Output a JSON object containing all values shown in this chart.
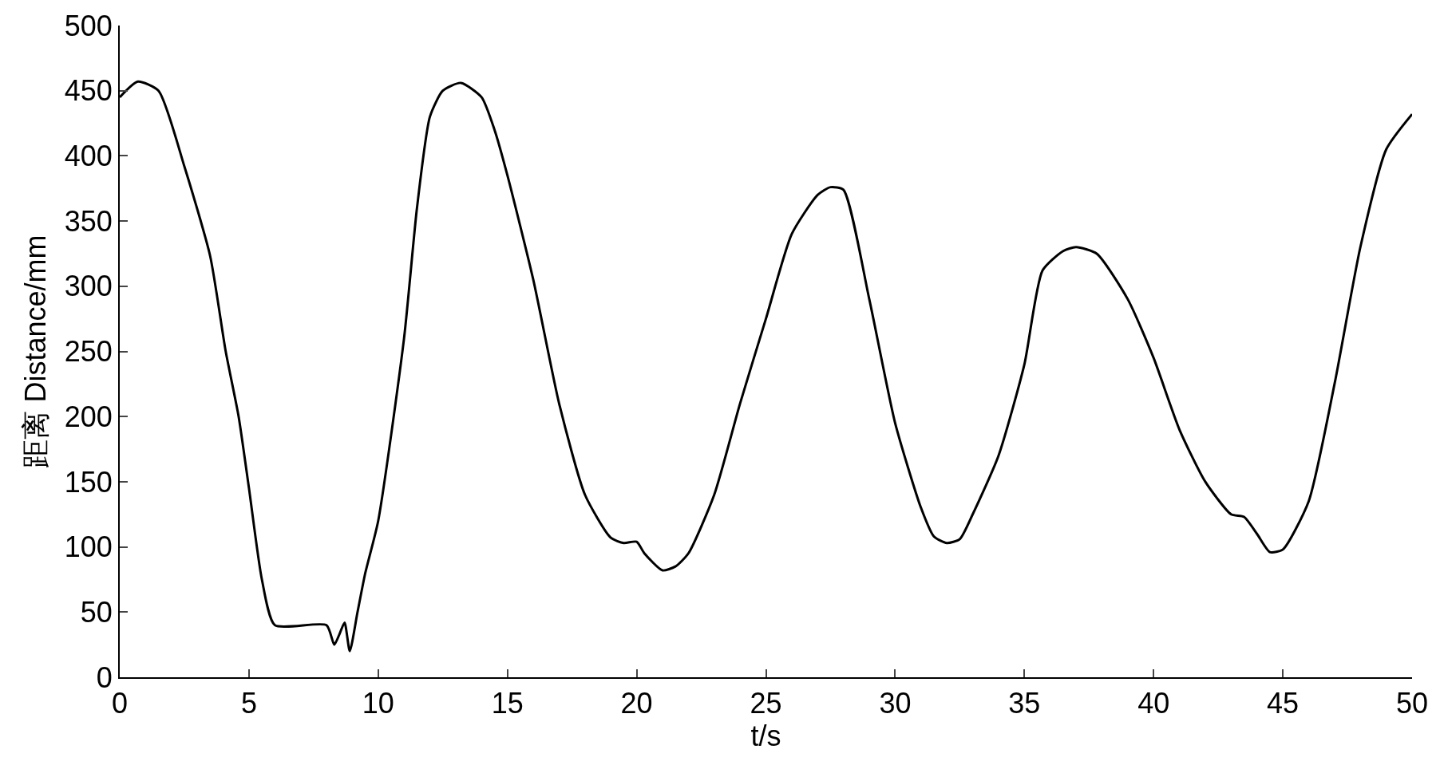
{
  "chart_data": {
    "type": "line",
    "xlabel": "t/s",
    "ylabel": "距离 Distance/mm",
    "xlim": [
      0,
      50
    ],
    "ylim": [
      0,
      500
    ],
    "xticks": [
      0,
      5,
      10,
      15,
      20,
      25,
      30,
      35,
      40,
      45,
      50
    ],
    "yticks": [
      0,
      50,
      100,
      150,
      200,
      250,
      300,
      350,
      400,
      450,
      500
    ],
    "grid": false,
    "marker": "none",
    "line_style": "solid",
    "x": [
      0,
      0.7,
      1.5,
      2.5,
      3.5,
      4.1,
      4.6,
      5,
      5.5,
      6,
      8,
      8.3,
      8.5,
      8.7,
      8.9,
      9.2,
      9.5,
      10,
      11,
      11.5,
      12,
      12.5,
      13.2,
      14,
      14.5,
      15,
      16,
      17,
      18,
      19,
      19.5,
      20,
      20.3,
      21,
      21.5,
      22,
      23,
      24,
      25,
      26,
      27,
      27.5,
      28,
      29,
      30,
      31,
      31.5,
      32,
      32.5,
      33,
      34,
      35,
      35.7,
      36.5,
      37,
      37.8,
      39,
      40,
      41,
      42,
      43,
      43.5,
      44,
      44.5,
      45,
      46,
      47,
      48,
      49,
      50
    ],
    "series": [
      {
        "color": "#000000",
        "values": [
          445,
          457,
          450,
          392,
          323,
          250,
          200,
          145,
          75,
          40,
          40,
          25,
          33,
          42,
          20,
          50,
          80,
          120,
          260,
          360,
          430,
          450,
          456,
          445,
          420,
          385,
          305,
          210,
          140,
          107,
          103,
          104,
          95,
          82,
          85,
          95,
          140,
          210,
          275,
          340,
          370,
          376,
          374,
          290,
          195,
          130,
          108,
          103,
          106,
          125,
          170,
          240,
          312,
          327,
          330,
          325,
          290,
          245,
          190,
          150,
          125,
          123,
          110,
          96,
          98,
          135,
          225,
          330,
          405,
          432
        ]
      }
    ]
  }
}
